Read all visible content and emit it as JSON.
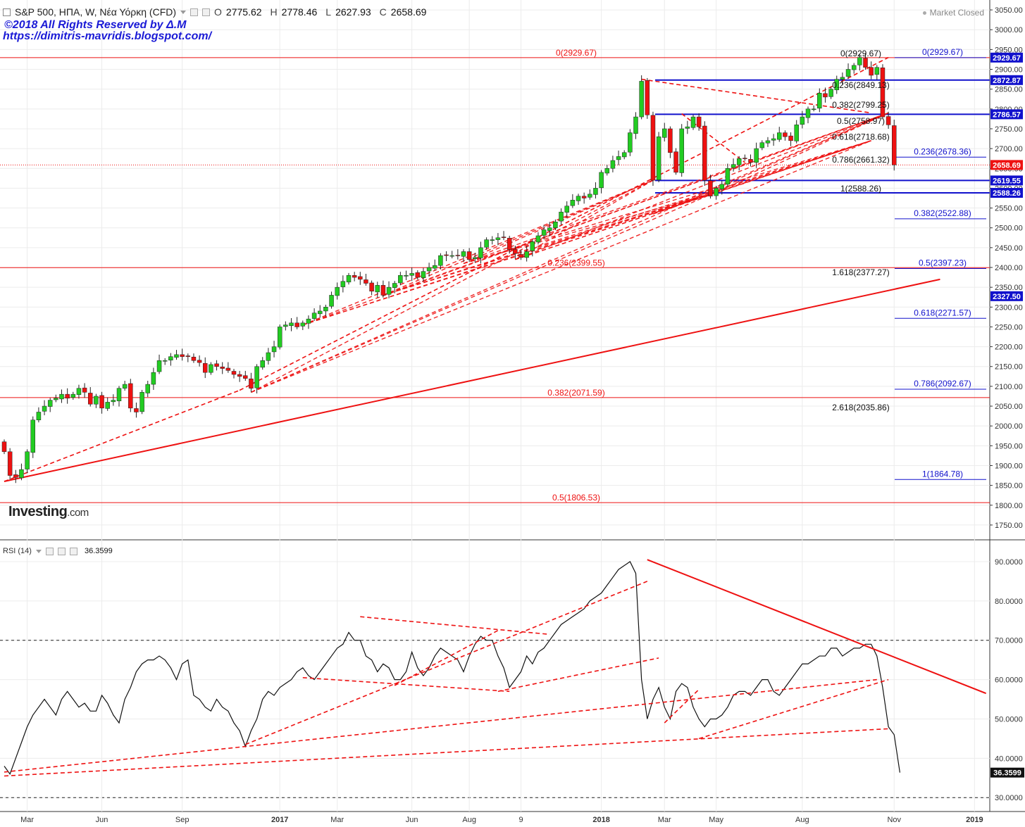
{
  "header": {
    "title": "S&P 500, ΗΠΑ, W, Νέα Υόρκη (CFD)",
    "open_label": "O",
    "open": "2775.62",
    "high_label": "H",
    "high": "2778.46",
    "low_label": "L",
    "low": "2627.93",
    "close_label": "C",
    "close": "2658.69",
    "copyright": "©2018 All Rights Reserved by Δ.M",
    "blog": "https://dimitris-mavridis.blogspot.com/",
    "market_status": "Market Closed"
  },
  "logo": {
    "text": "Investing",
    "suffix": ".com"
  },
  "rsi_panel": {
    "label": "RSI (14)",
    "value": "36.3599"
  },
  "colors": {
    "up": "#22cc22",
    "down": "#ee1111",
    "drawing_red": "#ee1111",
    "drawing_blue": "#1111cc",
    "rsi_line": "#111111",
    "grid": "#ececec"
  },
  "chart_data": [
    {
      "type": "candlestick",
      "title": "S&P 500, ΗΠΑ, W, Νέα Υόρκη (CFD)",
      "timeframe": "weekly",
      "x_tick_labels": [
        "Mar",
        "Jun",
        "Sep",
        "2017",
        "Mar",
        "Jun",
        "Aug",
        "9",
        "2018",
        "Mar",
        "May",
        "Aug",
        "Nov",
        "2019"
      ],
      "y_ticks": [
        3050,
        3000,
        2950,
        2900,
        2850,
        2800,
        2750,
        2700,
        2650,
        2600,
        2550,
        2500,
        2450,
        2400,
        2350,
        2300,
        2250,
        2200,
        2150,
        2100,
        2050,
        2000,
        1950,
        1900,
        1850,
        1800,
        1750
      ],
      "ylim": [
        1725,
        3075
      ],
      "grid": true,
      "close_series": [
        1935,
        1875,
        1870,
        1890,
        1935,
        2015,
        2035,
        2050,
        2065,
        2070,
        2080,
        2070,
        2080,
        2095,
        2085,
        2055,
        2075,
        2045,
        2060,
        2065,
        2095,
        2105,
        2045,
        2035,
        2085,
        2105,
        2135,
        2165,
        2165,
        2175,
        2180,
        2175,
        2175,
        2165,
        2160,
        2135,
        2155,
        2150,
        2145,
        2140,
        2130,
        2125,
        2120,
        2095,
        2150,
        2165,
        2185,
        2200,
        2250,
        2255,
        2260,
        2250,
        2260,
        2270,
        2285,
        2290,
        2300,
        2330,
        2350,
        2365,
        2380,
        2375,
        2370,
        2360,
        2340,
        2355,
        2330,
        2350,
        2360,
        2380,
        2380,
        2385,
        2375,
        2390,
        2400,
        2405,
        2430,
        2430,
        2430,
        2430,
        2440,
        2420,
        2425,
        2450,
        2470,
        2470,
        2475,
        2475,
        2445,
        2435,
        2425,
        2440,
        2465,
        2480,
        2495,
        2500,
        2515,
        2540,
        2555,
        2570,
        2580,
        2575,
        2585,
        2600,
        2640,
        2650,
        2670,
        2680,
        2690,
        2740,
        2780,
        2870,
        2785,
        2620,
        2730,
        2750,
        2690,
        2640,
        2750,
        2755,
        2780,
        2755,
        2620,
        2580,
        2600,
        2610,
        2650,
        2660,
        2675,
        2675,
        2665,
        2700,
        2715,
        2720,
        2725,
        2740,
        2730,
        2720,
        2760,
        2780,
        2800,
        2800,
        2840,
        2830,
        2850,
        2875,
        2880,
        2900,
        2910,
        2930,
        2905,
        2885,
        2905,
        2780,
        2760,
        2658.69
      ],
      "annotations": {
        "horizontal_lines": [
          {
            "label": "0(2929.67)",
            "value": 2929.67,
            "color": "red"
          },
          {
            "label": "0.236(2399.55)",
            "value": 2399.55,
            "color": "red"
          },
          {
            "label": "0.382(2071.59)",
            "value": 2071.59,
            "color": "red"
          },
          {
            "label": "0.5(1806.53)",
            "value": 1806.53,
            "color": "red"
          },
          {
            "value": 2872.87,
            "color": "blue"
          },
          {
            "value": 2786.57,
            "color": "blue"
          },
          {
            "value": 2619.55,
            "color": "blue"
          },
          {
            "value": 2588.26,
            "color": "blue"
          }
        ],
        "fib_retracement": [
          {
            "label": "0(2929.67)",
            "value": 2929.67
          },
          {
            "label": "0.236(2849.13)",
            "value": 2849.13
          },
          {
            "label": "0.382(2799.25)",
            "value": 2799.25
          },
          {
            "label": "0.5(2758.97)",
            "value": 2758.97
          },
          {
            "label": "0.618(2718.68)",
            "value": 2718.68
          },
          {
            "label": "0.786(2661.32)",
            "value": 2661.32
          },
          {
            "label": "1(2588.26)",
            "value": 2588.26
          },
          {
            "label": "1.618(2377.27)",
            "value": 2377.27
          },
          {
            "label": "2.618(2035.86)",
            "value": 2035.86
          }
        ],
        "fib_blue": [
          {
            "label": "0(2929.67)",
            "value": 2929.67
          },
          {
            "label": "0.236(2678.36)",
            "value": 2678.36
          },
          {
            "label": "0.382(2522.88)",
            "value": 2522.88
          },
          {
            "label": "0.5(2397.23)",
            "value": 2397.23
          },
          {
            "label": "0.618(2271.57)",
            "value": 2271.57
          },
          {
            "label": "0.786(2092.67)",
            "value": 2092.67
          },
          {
            "label": "1(1864.78)",
            "value": 1864.78
          }
        ],
        "price_tags": [
          {
            "text": "2929.67",
            "value": 2929.67,
            "color": "blue"
          },
          {
            "text": "2872.87",
            "value": 2872.87,
            "color": "blue"
          },
          {
            "text": "2786.57",
            "value": 2786.57,
            "color": "blue"
          },
          {
            "text": "2658.69",
            "value": 2658.69,
            "color": "red"
          },
          {
            "text": "2619.55",
            "value": 2619.55,
            "color": "blue"
          },
          {
            "text": "2588.26",
            "value": 2588.26,
            "color": "blue"
          },
          {
            "text": "2327.50",
            "value": 2327.5,
            "color": "blue"
          }
        ],
        "trendlines": [
          {
            "from": [
              0,
              1860
            ],
            "to": [
              163,
              2370
            ],
            "style": "solid"
          },
          {
            "from": [
              0,
              1860
            ],
            "to": [
              41,
              2090
            ],
            "style": "dashed"
          },
          {
            "from": [
              41,
              2090
            ],
            "to": [
              154,
              2930
            ],
            "style": "dashed"
          },
          {
            "from": [
              111,
              2875
            ],
            "to": [
              151,
              2790
            ],
            "style": "dashed"
          },
          {
            "from": [
              118,
              2788
            ],
            "to": [
              129,
              2665
            ],
            "style": "dashed"
          }
        ]
      }
    },
    {
      "type": "line",
      "title": "RSI (14)",
      "y_ticks": [
        90,
        80,
        70,
        60,
        50,
        40,
        30
      ],
      "ylim": [
        27,
        95
      ],
      "reference_lines": [
        70,
        30
      ],
      "last_value": 36.3599,
      "values": [
        38,
        36,
        40,
        44,
        48,
        51,
        53,
        55,
        53,
        51,
        55,
        57,
        55,
        53,
        54,
        52,
        52,
        56,
        54,
        51,
        49,
        55,
        58,
        62,
        64,
        65,
        65,
        66,
        65,
        63,
        60,
        64,
        65,
        56,
        55,
        53,
        52,
        55,
        53,
        52,
        49,
        47,
        43,
        47,
        50,
        55,
        57,
        56,
        58,
        59,
        60,
        62,
        63,
        61,
        60,
        62,
        64,
        66,
        68,
        69,
        72,
        70,
        70,
        66,
        65,
        62,
        64,
        63,
        60,
        60,
        62,
        67,
        63,
        61,
        63,
        66,
        68,
        67,
        66,
        65,
        62,
        66,
        69,
        71,
        70,
        70,
        66,
        63,
        58,
        60,
        62,
        66,
        64,
        67,
        68,
        70,
        72,
        74,
        75,
        76,
        77,
        78,
        80,
        81,
        82,
        84,
        86,
        88,
        89,
        90,
        87,
        60,
        50,
        55,
        58,
        53,
        50,
        57,
        59,
        58,
        53,
        50,
        48,
        50,
        50,
        51,
        53,
        56,
        57,
        57,
        56,
        58,
        60,
        60,
        57,
        56,
        58,
        60,
        62,
        64,
        64,
        65,
        66,
        66,
        68,
        68,
        66,
        67,
        68,
        68,
        69,
        69,
        66,
        58,
        48,
        46,
        36.36
      ]
    }
  ]
}
